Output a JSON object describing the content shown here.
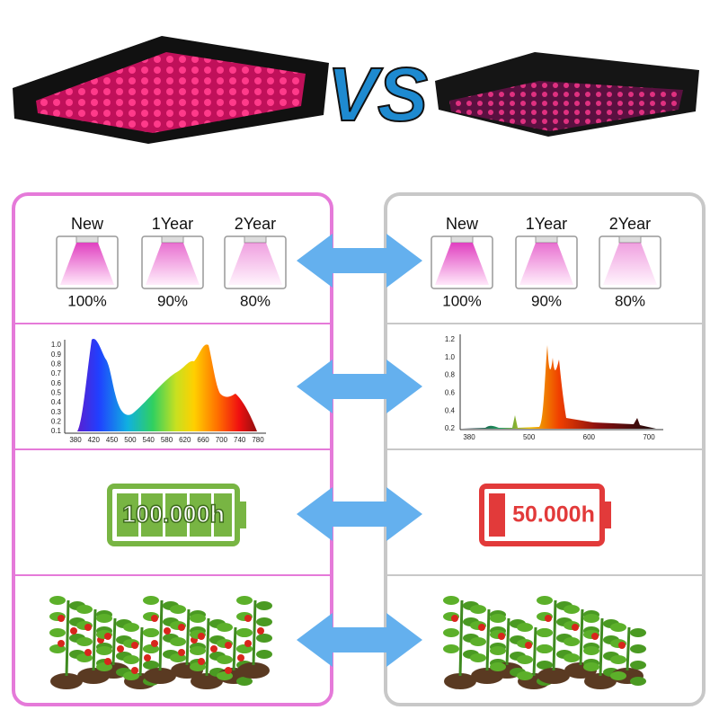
{
  "header": {
    "vs": "VS"
  },
  "left": {
    "brightness": [
      {
        "label": "New",
        "percent": "100%"
      },
      {
        "label": "1Year",
        "percent": "90%"
      },
      {
        "label": "2Year",
        "percent": "80%"
      }
    ],
    "spectrum": {
      "yticks": [
        "1.0",
        "0.9",
        "0.8",
        "0.7",
        "0.6",
        "0.5",
        "0.4",
        "0.3",
        "0.2",
        "0.1"
      ],
      "xticks": [
        "380",
        "420",
        "450",
        "500",
        "540",
        "580",
        "620",
        "660",
        "700",
        "740",
        "780"
      ]
    },
    "lifetime": "100.000h"
  },
  "right": {
    "brightness": [
      {
        "label": "New",
        "percent": "100%"
      },
      {
        "label": "1Year",
        "percent": "90%"
      },
      {
        "label": "2Year",
        "percent": "80%"
      }
    ],
    "spectrum": {
      "yticks": [
        "1.2",
        "1.0",
        "0.8",
        "0.6",
        "0.4",
        "0.2"
      ],
      "xticks": [
        "380",
        "500",
        "600",
        "700"
      ]
    },
    "lifetime": "50.000h"
  }
}
